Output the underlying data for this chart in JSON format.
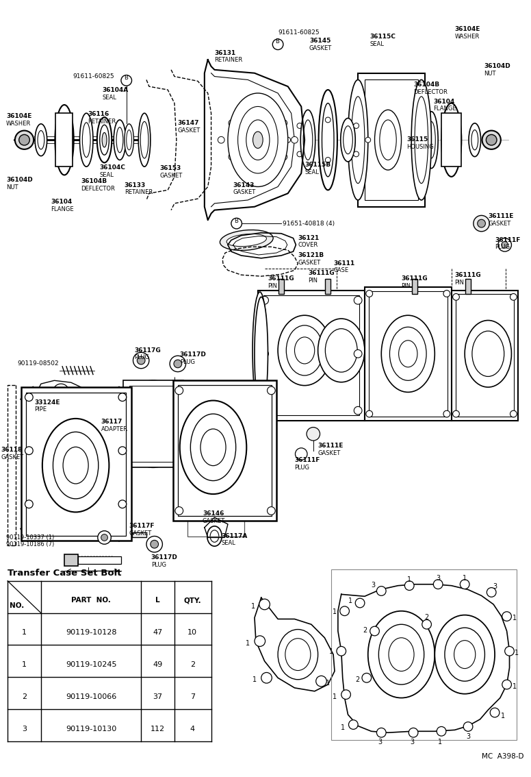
{
  "bg_color": "#ffffff",
  "fig_width": 7.76,
  "fig_height": 11.34,
  "dpi": 100,
  "table_title": "Transfer Case Set Bolt",
  "table_headers": [
    "NO.",
    "PART NO.",
    "L",
    "QTY."
  ],
  "table_rows": [
    [
      "1",
      "90119-10128",
      "47",
      "10"
    ],
    [
      "1",
      "90119-10245",
      "49",
      "2"
    ],
    [
      "2",
      "90119-10066",
      "37",
      "7"
    ],
    [
      "3",
      "90119-10130",
      "112",
      "4"
    ]
  ],
  "footer_text": "MC  A398-D"
}
